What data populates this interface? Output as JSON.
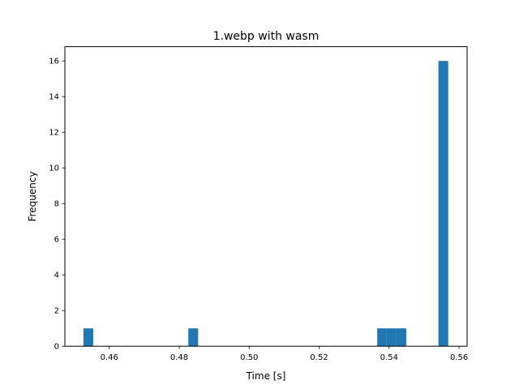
{
  "chart_data": {
    "type": "bar",
    "title": "1.webp with wasm",
    "xlabel": "Time [s]",
    "ylabel": "Frequency",
    "xlim": [
      0.4473,
      0.5623
    ],
    "ylim": [
      0,
      16.8
    ],
    "xticks": [
      "0.46",
      "0.48",
      "0.50",
      "0.52",
      "0.54",
      "0.56"
    ],
    "xtick_values": [
      0.46,
      0.48,
      0.5,
      0.52,
      0.54,
      0.56
    ],
    "yticks": [
      "0",
      "2",
      "4",
      "6",
      "8",
      "10",
      "12",
      "14",
      "16"
    ],
    "ytick_values": [
      0,
      2,
      4,
      6,
      8,
      10,
      12,
      14,
      16
    ],
    "grid": false,
    "bar_color": "#1f77b4",
    "bins": [
      {
        "x0": 0.4526,
        "x1": 0.4554,
        "value": 1
      },
      {
        "x0": 0.4826,
        "x1": 0.4854,
        "value": 1
      },
      {
        "x0": 0.5366,
        "x1": 0.5393,
        "value": 1
      },
      {
        "x0": 0.5393,
        "x1": 0.5421,
        "value": 1
      },
      {
        "x0": 0.5421,
        "x1": 0.5449,
        "value": 1
      },
      {
        "x0": 0.5541,
        "x1": 0.5569,
        "value": 16
      }
    ]
  }
}
